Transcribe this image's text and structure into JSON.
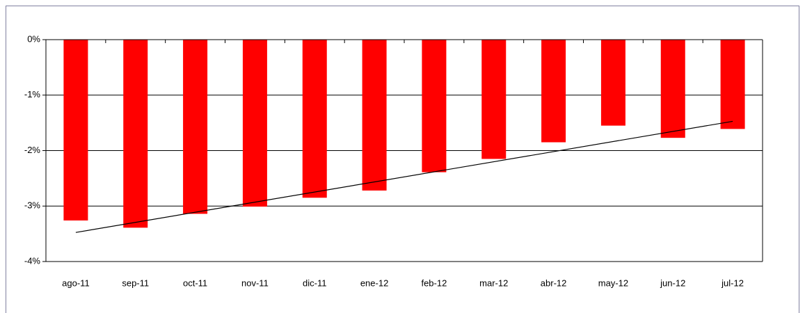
{
  "chart_data": {
    "type": "bar",
    "categories": [
      "ago-11",
      "sep-11",
      "oct-11",
      "nov-11",
      "dic-11",
      "ene-12",
      "feb-12",
      "mar-12",
      "abr-12",
      "may-12",
      "jun-12",
      "jul-12"
    ],
    "values": [
      -3.26,
      -3.39,
      -3.14,
      -3.01,
      -2.85,
      -2.72,
      -2.39,
      -2.15,
      -1.85,
      -1.55,
      -1.77,
      -1.61
    ],
    "color": "#ff0000",
    "trendline": true,
    "ylim": [
      -4,
      0
    ],
    "yticks": [
      {
        "value": 0,
        "label": "0%"
      },
      {
        "value": -1,
        "label": "-1%"
      },
      {
        "value": -2,
        "label": "-2%"
      },
      {
        "value": -3,
        "label": "-3%"
      },
      {
        "value": -4,
        "label": "-4%"
      }
    ],
    "grid": true
  }
}
